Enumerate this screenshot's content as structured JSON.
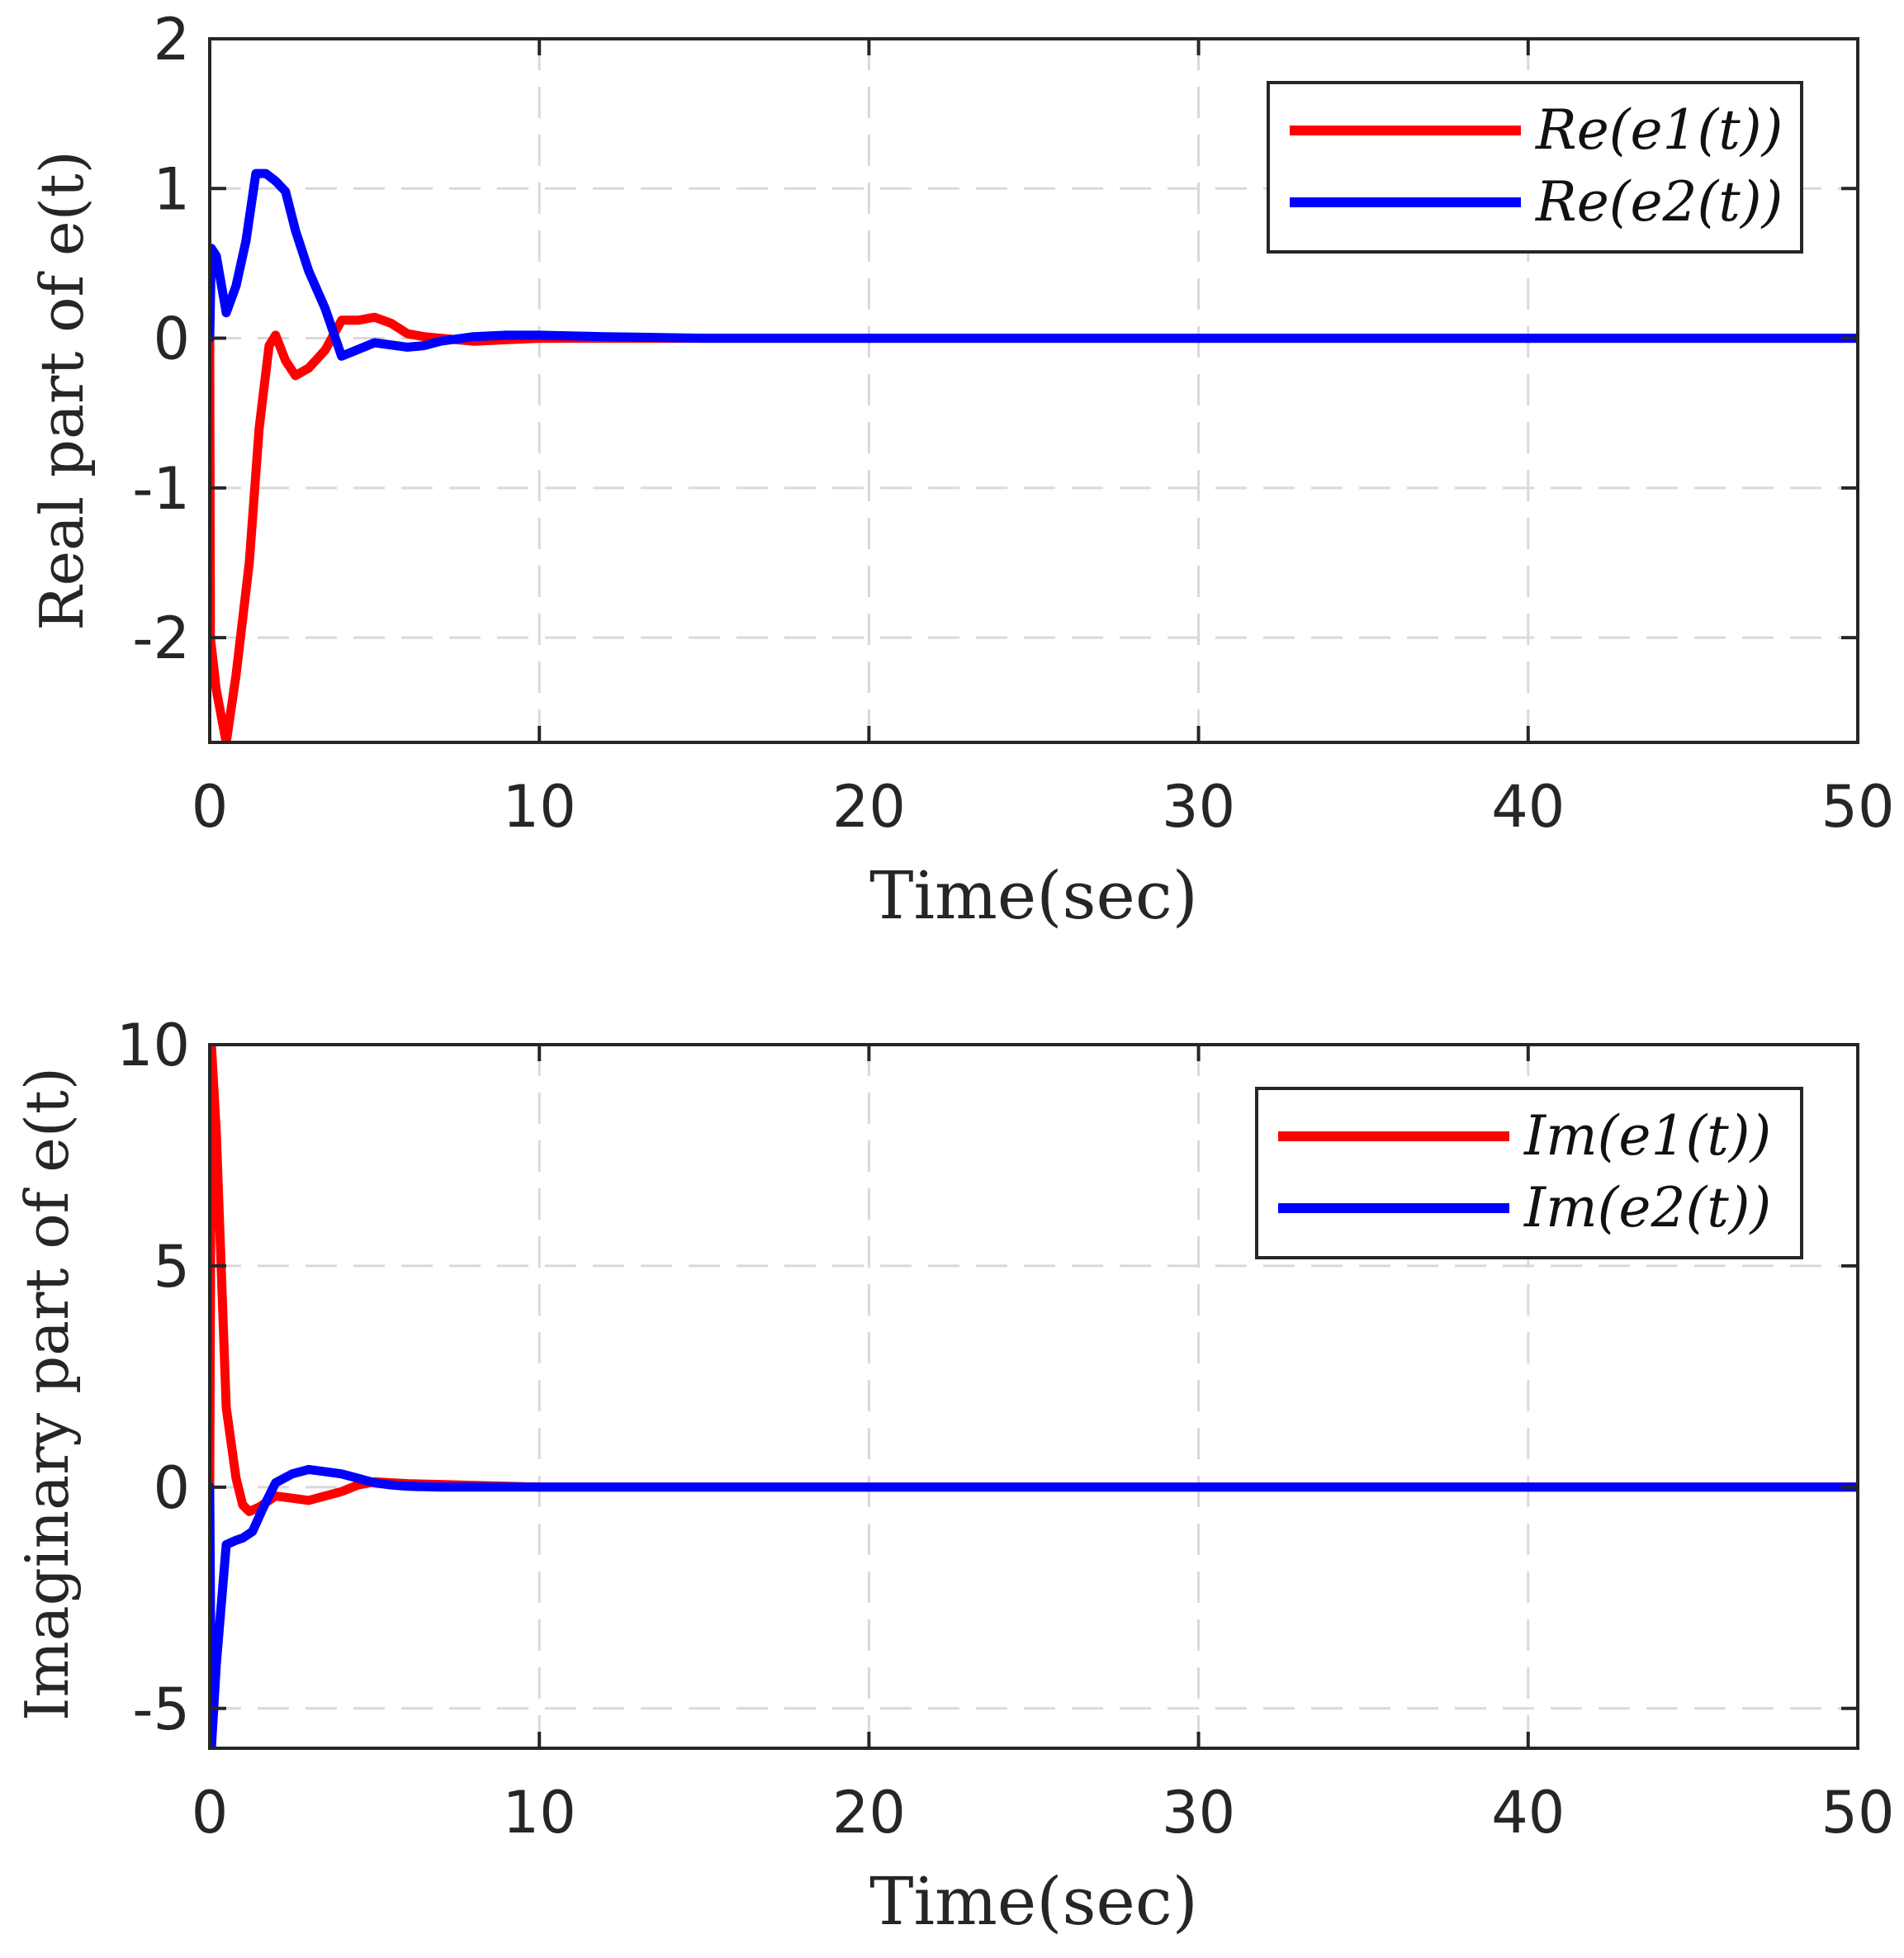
{
  "colors": {
    "series1": "#ff0000",
    "series2": "#0000ff",
    "grid": "#d9d9d9",
    "axis": "#262626"
  },
  "chart_data": [
    {
      "type": "line",
      "xlabel": "Time(sec)",
      "ylabel": "Real part of e(t)",
      "xlim": [
        0,
        50
      ],
      "ylim": [
        -2.7,
        2
      ],
      "xticks": [
        0,
        10,
        20,
        30,
        40,
        50
      ],
      "yticks": [
        -2,
        -1,
        0,
        1,
        2
      ],
      "xtick_labels": [
        "0",
        "10",
        "20",
        "30",
        "40",
        "50"
      ],
      "ytick_labels": [
        "-2",
        "-1",
        "0",
        "1",
        "2"
      ],
      "grid": true,
      "legend_position": "top-right",
      "series": [
        {
          "name": "Re(e1(t))",
          "color": "#ff0000",
          "x": [
            0,
            0.02,
            0.2,
            0.5,
            0.8,
            1.2,
            1.5,
            1.8,
            2.0,
            2.3,
            2.6,
            3.0,
            3.5,
            4.0,
            4.5,
            5.0,
            5.5,
            6.0,
            6.5,
            7.0,
            8.0,
            9.0,
            10.0,
            12.0,
            15.0,
            20.0,
            30.0,
            40.0,
            50.0
          ],
          "values": [
            0,
            -2.0,
            -2.35,
            -2.7,
            -2.25,
            -1.5,
            -0.6,
            -0.05,
            0.02,
            -0.15,
            -0.25,
            -0.2,
            -0.08,
            0.12,
            0.12,
            0.14,
            0.1,
            0.03,
            0.01,
            0.0,
            -0.02,
            -0.01,
            0.0,
            0.0,
            0.0,
            0.0,
            0.0,
            0.0,
            0.0
          ]
        },
        {
          "name": "Re(e2(t))",
          "color": "#0000ff",
          "x": [
            0,
            0.05,
            0.2,
            0.5,
            0.8,
            1.1,
            1.4,
            1.7,
            2.0,
            2.3,
            2.6,
            3.0,
            3.5,
            4.0,
            5.0,
            6.0,
            6.5,
            7.0,
            8.0,
            9.0,
            10.0,
            12.0,
            15.0,
            20.0,
            30.0,
            40.0,
            50.0
          ],
          "values": [
            0,
            0.6,
            0.55,
            0.17,
            0.35,
            0.65,
            1.1,
            1.1,
            1.05,
            0.98,
            0.72,
            0.45,
            0.2,
            -0.12,
            -0.03,
            -0.06,
            -0.05,
            -0.02,
            0.01,
            0.02,
            0.02,
            0.01,
            0.0,
            0.0,
            0.0,
            0.0,
            0.0
          ]
        }
      ]
    },
    {
      "type": "line",
      "xlabel": "Time(sec)",
      "ylabel": "Imaginary part of e(t)",
      "xlim": [
        0,
        50
      ],
      "ylim": [
        -5.9,
        10
      ],
      "xticks": [
        0,
        10,
        20,
        30,
        40,
        50
      ],
      "yticks": [
        -5,
        0,
        5,
        10
      ],
      "xtick_labels": [
        "0",
        "10",
        "20",
        "30",
        "40",
        "50"
      ],
      "ytick_labels": [
        "-5",
        "0",
        "5",
        "10"
      ],
      "grid": true,
      "legend_position": "top-right",
      "series": [
        {
          "name": "Im(e1(t))",
          "color": "#ff0000",
          "x": [
            0,
            0.05,
            0.2,
            0.5,
            0.8,
            1.0,
            1.2,
            1.5,
            2.0,
            2.5,
            3.0,
            3.5,
            4.0,
            4.5,
            5.0,
            5.5,
            6.0,
            7.0,
            8.0,
            9.0,
            10.0,
            15.0,
            20.0,
            30.0,
            40.0,
            50.0
          ],
          "values": [
            0,
            10.0,
            8.0,
            1.8,
            0.2,
            -0.4,
            -0.55,
            -0.45,
            -0.2,
            -0.25,
            -0.3,
            -0.2,
            -0.1,
            0.05,
            0.12,
            0.1,
            0.08,
            0.06,
            0.04,
            0.02,
            0.0,
            0.0,
            0.0,
            0.0,
            0.0,
            0.0
          ]
        },
        {
          "name": "Im(e2(t))",
          "color": "#0000ff",
          "x": [
            0,
            0.05,
            0.2,
            0.5,
            0.8,
            1.0,
            1.3,
            1.6,
            2.0,
            2.5,
            3.0,
            3.5,
            4.0,
            4.5,
            5.0,
            5.5,
            6.0,
            7.0,
            8.0,
            9.0,
            10.0,
            15.0,
            20.0,
            30.0,
            40.0,
            50.0
          ],
          "values": [
            0,
            -5.9,
            -4.0,
            -1.3,
            -1.2,
            -1.15,
            -1.0,
            -0.5,
            0.1,
            0.3,
            0.4,
            0.35,
            0.3,
            0.2,
            0.1,
            0.05,
            0.02,
            0.0,
            0.0,
            0.0,
            0.0,
            0.0,
            0.0,
            0.0,
            0.0,
            0.0
          ]
        }
      ]
    }
  ]
}
